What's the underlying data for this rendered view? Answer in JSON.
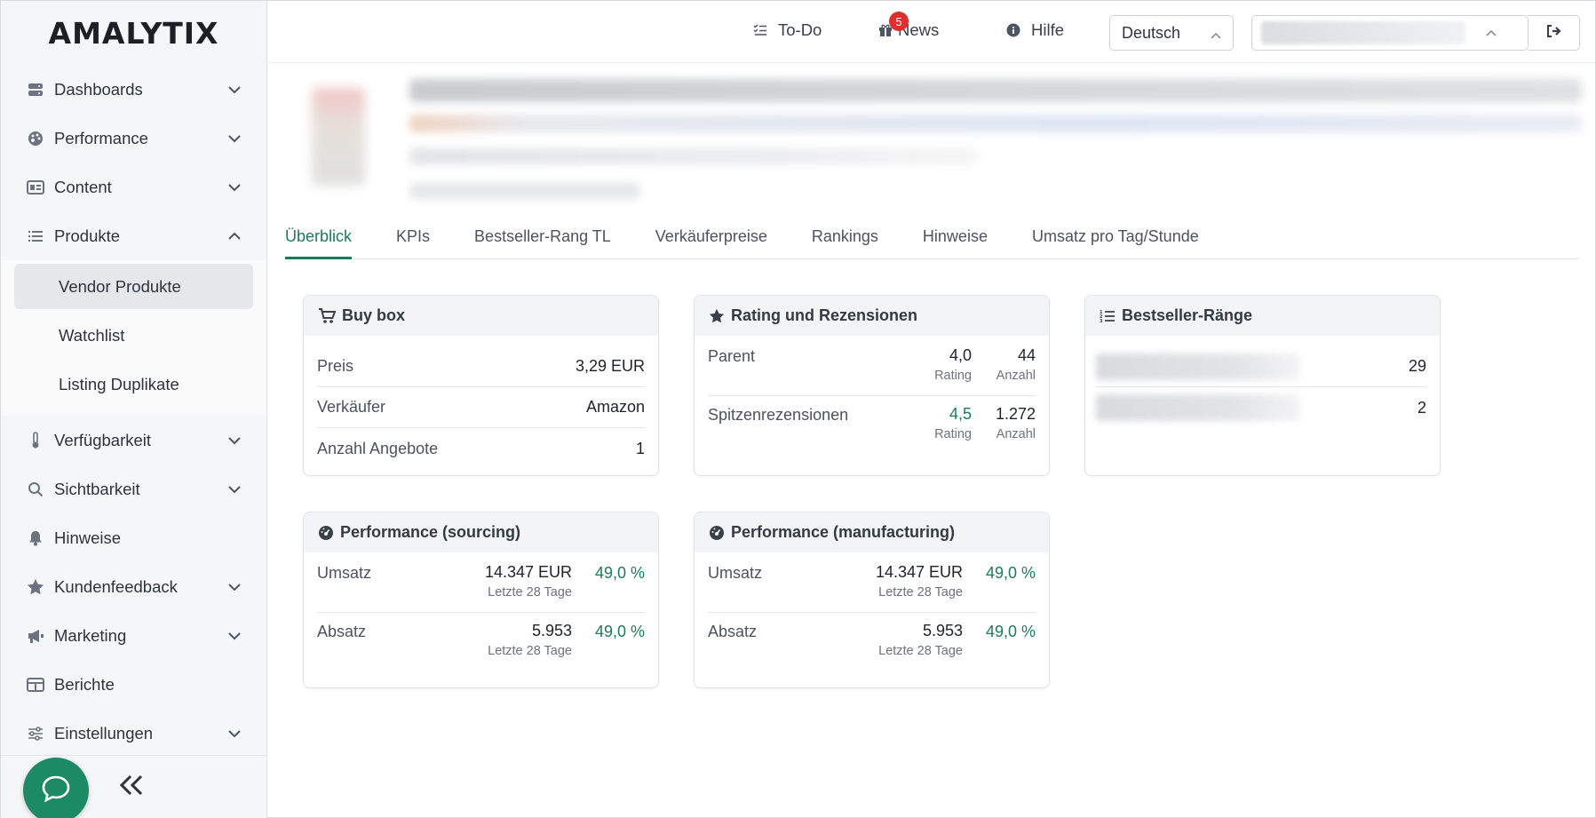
{
  "app": {
    "logo": "AMALYTIX"
  },
  "sidebar": {
    "items": [
      {
        "label": "Dashboards",
        "icon": "server-icon",
        "expandable": true
      },
      {
        "label": "Performance",
        "icon": "palette-icon",
        "expandable": true
      },
      {
        "label": "Content",
        "icon": "id-card-icon",
        "expandable": true
      },
      {
        "label": "Produkte",
        "icon": "list-icon",
        "expandable": true,
        "expanded": true
      },
      {
        "label": "Verfügbarkeit",
        "icon": "thermometer-icon",
        "expandable": true
      },
      {
        "label": "Sichtbarkeit",
        "icon": "search-icon",
        "expandable": true
      },
      {
        "label": "Hinweise",
        "icon": "bell-icon",
        "expandable": false
      },
      {
        "label": "Kundenfeedback",
        "icon": "star-icon",
        "expandable": true
      },
      {
        "label": "Marketing",
        "icon": "megaphone-icon",
        "expandable": true
      },
      {
        "label": "Berichte",
        "icon": "table-icon",
        "expandable": false
      },
      {
        "label": "Einstellungen",
        "icon": "sliders-icon",
        "expandable": true
      }
    ],
    "submenu": [
      {
        "label": "Vendor Produkte",
        "active": true
      },
      {
        "label": "Watchlist",
        "active": false
      },
      {
        "label": "Listing Duplikate",
        "active": false
      }
    ]
  },
  "topbar": {
    "todo_label": "To-Do",
    "news_label": "News",
    "news_badge": "5",
    "help_label": "Hilfe",
    "language": "Deutsch"
  },
  "tabs": [
    {
      "label": "Überblick",
      "active": true
    },
    {
      "label": "KPIs",
      "active": false
    },
    {
      "label": "Bestseller-Rang TL",
      "active": false
    },
    {
      "label": "Verkäuferpreise",
      "active": false
    },
    {
      "label": "Rankings",
      "active": false
    },
    {
      "label": "Hinweise",
      "active": false
    },
    {
      "label": "Umsatz pro Tag/Stunde",
      "active": false
    }
  ],
  "buybox": {
    "title": "Buy box",
    "rows": [
      {
        "label": "Preis",
        "value": "3,29 EUR"
      },
      {
        "label": "Verkäufer",
        "value": "Amazon"
      },
      {
        "label": "Anzahl Angebote",
        "value": "1"
      }
    ]
  },
  "rating": {
    "title": "Rating und Rezensionen",
    "rows": [
      {
        "label": "Parent",
        "rating": "4,0",
        "rating_sub": "Rating",
        "count": "44",
        "count_sub": "Anzahl"
      },
      {
        "label": "Spitzenrezensionen",
        "rating": "4,5",
        "rating_sub": "Rating",
        "count": "1.272",
        "count_sub": "Anzahl"
      }
    ]
  },
  "bestseller": {
    "title": "Bestseller-Ränge",
    "values": [
      "29",
      "2"
    ]
  },
  "perf_sourcing": {
    "title": "Performance (sourcing)",
    "rows": [
      {
        "label": "Umsatz",
        "value": "14.347 EUR",
        "sub": "Letzte 28 Tage",
        "pct": "49,0 %"
      },
      {
        "label": "Absatz",
        "value": "5.953",
        "sub": "Letzte 28 Tage",
        "pct": "49,0 %"
      }
    ]
  },
  "perf_manufacturing": {
    "title": "Performance (manufacturing)",
    "rows": [
      {
        "label": "Umsatz",
        "value": "14.347 EUR",
        "sub": "Letzte 28 Tage",
        "pct": "49,0 %"
      },
      {
        "label": "Absatz",
        "value": "5.953",
        "sub": "Letzte 28 Tage",
        "pct": "49,0 %"
      }
    ]
  },
  "colors": {
    "accent": "#1d7a5a",
    "chat": "#1d8a66",
    "badge": "#e02d2d"
  }
}
